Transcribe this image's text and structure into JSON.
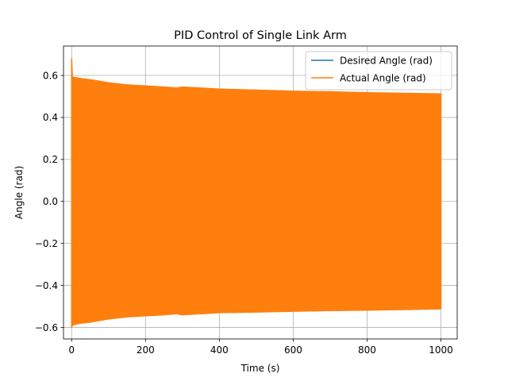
{
  "chart_data": {
    "type": "line",
    "title": "PID Control of Single Link Arm",
    "xlabel": "Time (s)",
    "ylabel": "Angle (rad)",
    "xlim": [
      -22,
      1044
    ],
    "ylim": [
      -0.655,
      0.74
    ],
    "xticks": [
      0,
      200,
      400,
      600,
      800,
      1000
    ],
    "yticks": [
      -0.6,
      -0.4,
      -0.2,
      0.0,
      0.2,
      0.4,
      0.6
    ],
    "xtick_labels": [
      "0",
      "200",
      "400",
      "600",
      "800",
      "1000"
    ],
    "ytick_labels": [
      "−0.6",
      "−0.4",
      "−0.2",
      "0.0",
      "0.2",
      "0.4",
      "0.6"
    ],
    "grid": true,
    "legend_position": "top-right",
    "series": [
      {
        "name": "Desired Angle (rad)",
        "color": "#1f77b4",
        "x": [
          0,
          1000
        ],
        "y": [
          0,
          0
        ]
      },
      {
        "name": "Actual Angle (rad)",
        "color": "#ff7f0e",
        "envelope": {
          "x": [
            0,
            2,
            10,
            25,
            50,
            100,
            150,
            200,
            250,
            285,
            300,
            400,
            500,
            600,
            700,
            800,
            900,
            1000
          ],
          "upper": [
            0.68,
            0.59,
            0.59,
            0.585,
            0.58,
            0.565,
            0.555,
            0.55,
            0.545,
            0.54,
            0.545,
            0.535,
            0.53,
            0.525,
            0.522,
            0.518,
            0.515,
            0.512
          ],
          "lower": [
            -0.6,
            -0.59,
            -0.585,
            -0.58,
            -0.575,
            -0.56,
            -0.55,
            -0.545,
            -0.54,
            -0.535,
            -0.54,
            -0.53,
            -0.527,
            -0.523,
            -0.52,
            -0.518,
            -0.515,
            -0.512
          ]
        }
      }
    ]
  }
}
